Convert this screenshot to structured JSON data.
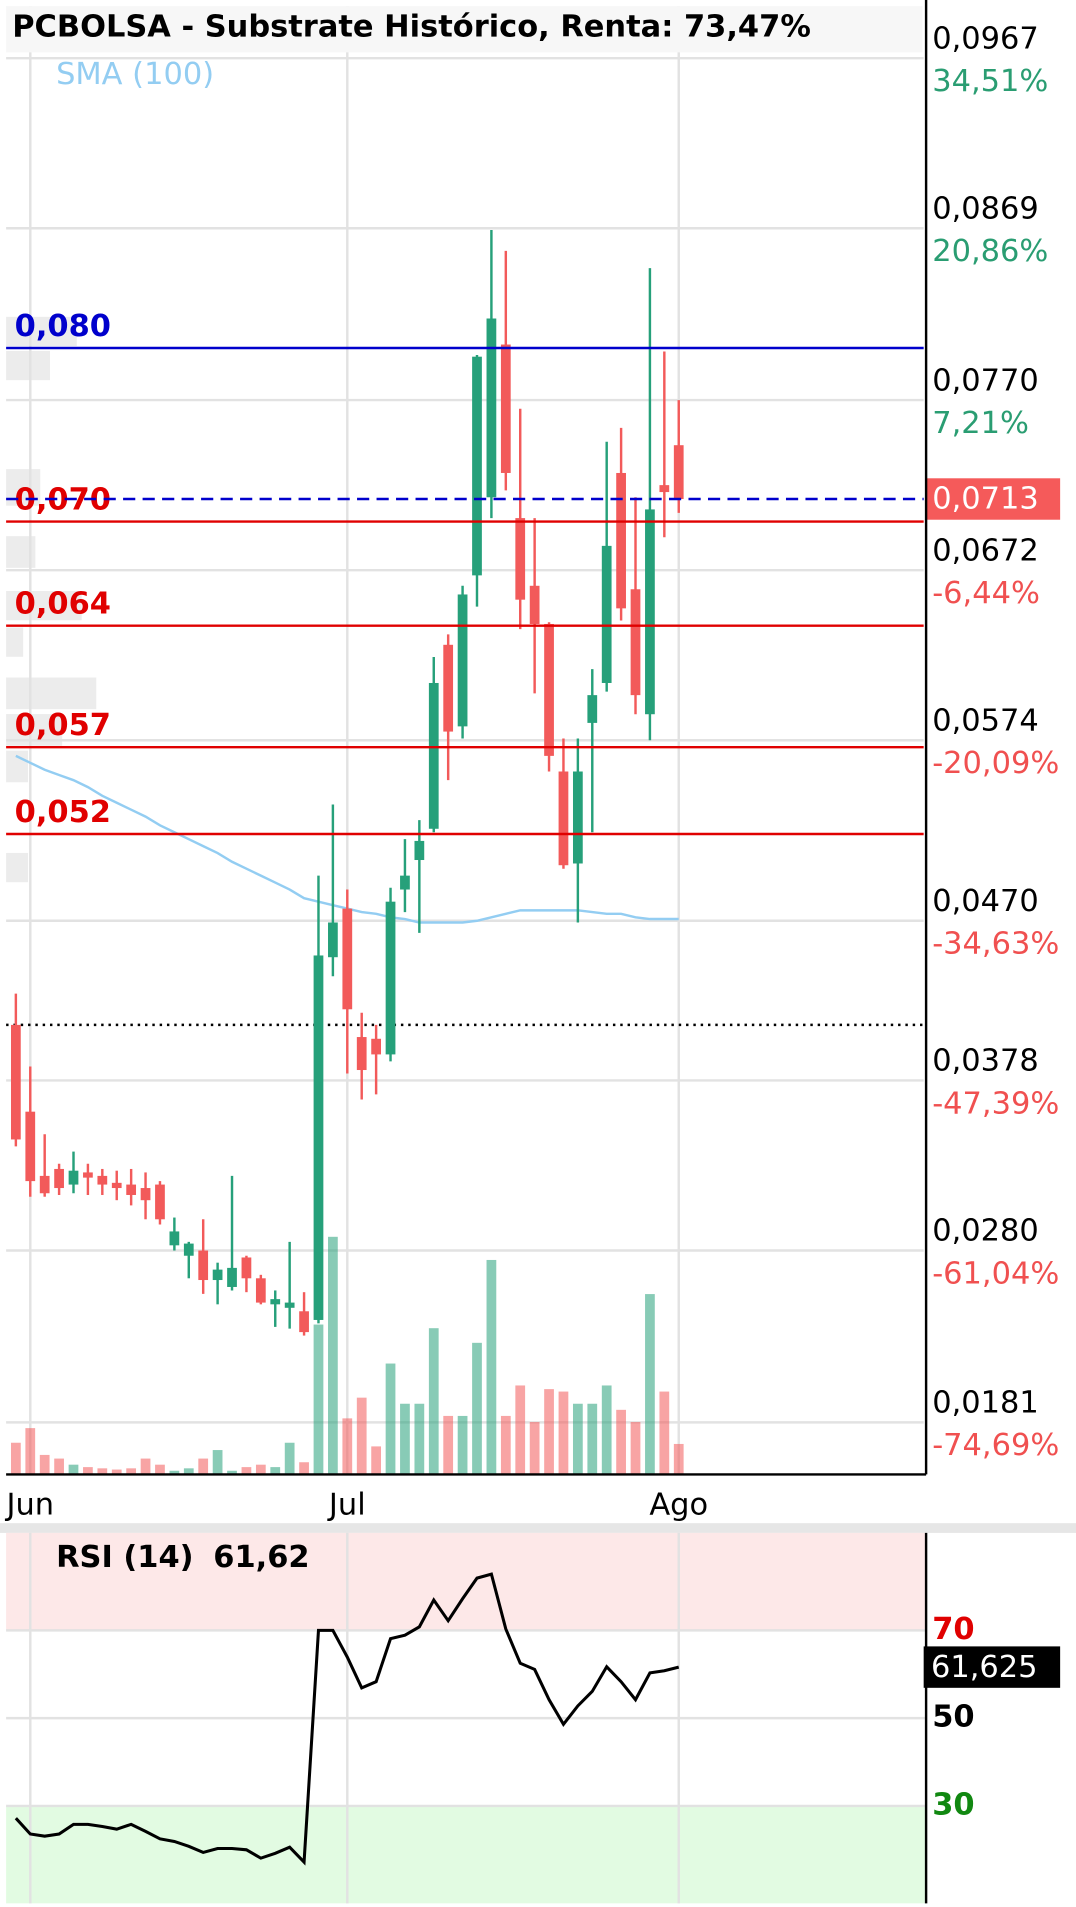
{
  "chart_data": [
    {
      "type": "candlestick",
      "title": "PCBOLSA - Substrate Histórico, Renta: 73,47%",
      "categories": [
        null,
        "Jun",
        null,
        null,
        null,
        null,
        null,
        null,
        null,
        null,
        null,
        null,
        null,
        null,
        null,
        null,
        null,
        null,
        null,
        null,
        null,
        null,
        null,
        "Jul",
        null,
        null,
        null,
        null,
        null,
        null,
        null,
        null,
        null,
        null,
        null,
        null,
        null,
        null,
        null,
        null,
        null,
        null,
        null,
        null,
        null,
        null,
        "Ago"
      ],
      "open": [
        0.041,
        0.036,
        0.0323,
        0.0327,
        0.0318,
        0.0325,
        0.0323,
        0.0319,
        0.0318,
        0.0316,
        0.0318,
        0.0283,
        0.0277,
        0.028,
        0.0263,
        0.0259,
        0.0276,
        0.0264,
        0.0249,
        0.0247,
        0.0245,
        0.024,
        0.0449,
        0.0477,
        0.0403,
        0.0402,
        0.0393,
        0.0488,
        0.0505,
        0.0523,
        0.0629,
        0.0582,
        0.0669,
        0.0714,
        0.0802,
        0.0702,
        0.0663,
        0.0641,
        0.0556,
        0.0503,
        0.0584,
        0.0607,
        0.0728,
        0.0661,
        0.0589,
        0.0721,
        0.0744
      ],
      "high": [
        0.0428,
        0.0386,
        0.0347,
        0.033,
        0.0337,
        0.033,
        0.0327,
        0.0326,
        0.0327,
        0.0325,
        0.032,
        0.0299,
        0.0285,
        0.0298,
        0.0273,
        0.0323,
        0.0277,
        0.0266,
        0.0257,
        0.0285,
        0.0256,
        0.0496,
        0.0537,
        0.0488,
        0.0417,
        0.041,
        0.0489,
        0.0517,
        0.0528,
        0.0622,
        0.0635,
        0.0663,
        0.0796,
        0.0868,
        0.0856,
        0.0765,
        0.0702,
        0.0642,
        0.0575,
        0.0575,
        0.0615,
        0.0746,
        0.0754,
        0.0714,
        0.0846,
        0.0798,
        0.077
      ],
      "low": [
        0.034,
        0.0311,
        0.0311,
        0.0312,
        0.0313,
        0.0312,
        0.0312,
        0.0309,
        0.0306,
        0.0298,
        0.0295,
        0.028,
        0.0264,
        0.0255,
        0.0249,
        0.0257,
        0.0256,
        0.0249,
        0.0236,
        0.0235,
        0.0231,
        0.0238,
        0.0438,
        0.0382,
        0.0367,
        0.037,
        0.0389,
        0.0475,
        0.0463,
        0.0521,
        0.0551,
        0.0575,
        0.0651,
        0.0702,
        0.0718,
        0.0638,
        0.0601,
        0.0556,
        0.05,
        0.0469,
        0.0521,
        0.0602,
        0.0643,
        0.0589,
        0.0574,
        0.0691,
        0.0705
      ],
      "close": [
        0.0344,
        0.032,
        0.0313,
        0.0316,
        0.0326,
        0.0322,
        0.0318,
        0.0316,
        0.0312,
        0.0309,
        0.0298,
        0.0291,
        0.0284,
        0.0263,
        0.0269,
        0.027,
        0.0264,
        0.025,
        0.0252,
        0.025,
        0.0233,
        0.045,
        0.0469,
        0.0419,
        0.0384,
        0.0393,
        0.0481,
        0.0496,
        0.0516,
        0.0607,
        0.0579,
        0.0658,
        0.0795,
        0.0817,
        0.0728,
        0.0655,
        0.0641,
        0.0565,
        0.0502,
        0.0556,
        0.06,
        0.0686,
        0.065,
        0.06,
        0.0707,
        0.0717,
        0.0713
      ],
      "volume": [
        26,
        38,
        16,
        13,
        8,
        6,
        5,
        4,
        5,
        13,
        8,
        3,
        5,
        13,
        20,
        3,
        6,
        8,
        6,
        26,
        10,
        123,
        195,
        46,
        63,
        23,
        91,
        58,
        58,
        120,
        48,
        48,
        108,
        176,
        48,
        73,
        43,
        70,
        68,
        58,
        58,
        73,
        53,
        43,
        148,
        68,
        25
      ],
      "up_color": "#26a07a",
      "down_color": "#f25a5a",
      "sma": {
        "name": "SMA (100)",
        "color": "#93cdf2",
        "values": [
          0.0565,
          0.0561,
          0.0557,
          0.0554,
          0.0551,
          0.0547,
          0.0542,
          0.0538,
          0.0534,
          0.053,
          0.0525,
          0.0521,
          0.0517,
          0.0513,
          0.0509,
          0.0504,
          0.05,
          0.0496,
          0.0492,
          0.0488,
          0.0483,
          0.0481,
          0.0479,
          0.0477,
          0.0475,
          0.0474,
          0.0472,
          0.0471,
          0.0469,
          0.0469,
          0.0469,
          0.0469,
          0.047,
          0.0472,
          0.0474,
          0.0476,
          0.0476,
          0.0476,
          0.0476,
          0.0476,
          0.0475,
          0.0474,
          0.0474,
          0.0472,
          0.0471,
          0.0471,
          0.0471
        ]
      },
      "levels": [
        {
          "value": 0.08,
          "label": "0,080",
          "color": "#0000cc"
        },
        {
          "value": 0.07,
          "label": "0,070",
          "color": "#e00000"
        },
        {
          "value": 0.064,
          "label": "0,064",
          "color": "#e00000"
        },
        {
          "value": 0.057,
          "label": "0,057",
          "color": "#e00000"
        },
        {
          "value": 0.052,
          "label": "0,052",
          "color": "#e00000"
        }
      ],
      "last_price": {
        "value": 0.0713,
        "label": "0,0713"
      },
      "reference_line": 0.041,
      "ylim": [
        0.0151,
        0.0997
      ],
      "yticks": [
        {
          "value": 0.0967,
          "label": "0,0967",
          "change": {
            "value": 34.51,
            "label": "34,51%"
          }
        },
        {
          "value": 0.0869,
          "label": "0,0869",
          "change": {
            "value": 20.86,
            "label": "20,86%"
          }
        },
        {
          "value": 0.077,
          "label": "0,0770",
          "change": {
            "value": 7.21,
            "label": "7,21%"
          }
        },
        {
          "value": 0.0672,
          "label": "0,0672",
          "change": {
            "value": -6.44,
            "label": "-6,44%"
          }
        },
        {
          "value": 0.0574,
          "label": "0,0574",
          "change": {
            "value": -20.09,
            "label": "-20,09%"
          }
        },
        {
          "value": 0.047,
          "label": "0,0470",
          "change": {
            "value": -34.63,
            "label": "-34,63%"
          }
        },
        {
          "value": 0.0378,
          "label": "0,0378",
          "change": {
            "value": -47.39,
            "label": "-47,39%"
          }
        },
        {
          "value": 0.028,
          "label": "0,0280",
          "change": {
            "value": -61.04,
            "label": "-61,04%"
          }
        },
        {
          "value": 0.0181,
          "label": "0,0181",
          "change": {
            "value": -74.69,
            "label": "-74,69%"
          }
        }
      ],
      "grid": true
    },
    {
      "type": "line",
      "title": "RSI (14)",
      "subtitle": "61,62",
      "color": "#000000",
      "values": [
        27.2,
        23.6,
        23.1,
        23.6,
        25.8,
        25.8,
        25.3,
        24.7,
        25.8,
        24.2,
        22.5,
        21.9,
        20.8,
        19.4,
        20.3,
        20.3,
        20.0,
        18.1,
        19.2,
        20.6,
        17.2,
        70.0,
        70.0,
        63.9,
        56.9,
        58.3,
        68.1,
        68.9,
        70.8,
        76.9,
        72.2,
        77.2,
        81.9,
        82.8,
        70.3,
        62.5,
        61.1,
        54.2,
        48.6,
        52.8,
        56.1,
        61.7,
        58.3,
        54.2,
        60.3,
        60.8,
        61.625
      ],
      "last_value_label": "61,625",
      "ylim": [
        7.8,
        92.2
      ],
      "yticks": [
        70,
        50,
        30
      ],
      "tick_colors": [
        "#e00000",
        "#000000",
        "#118811"
      ],
      "zones": [
        {
          "from": 70,
          "to": 92.2,
          "color": "#fde8e8"
        },
        {
          "from": 7.8,
          "to": 30,
          "color": "#e2fbe2"
        }
      ],
      "grid": true
    }
  ]
}
